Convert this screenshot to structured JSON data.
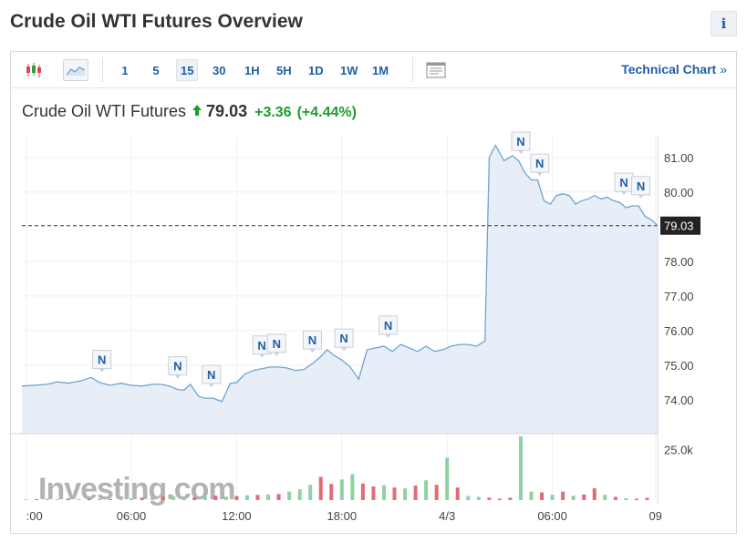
{
  "header": {
    "title": "Crude Oil WTI Futures Overview",
    "info_label": "i"
  },
  "toolbar": {
    "chart_types": [
      "candlestick-icon",
      "area-chart-icon"
    ],
    "intervals": [
      {
        "label": "1",
        "active": false
      },
      {
        "label": "5",
        "active": false
      },
      {
        "label": "15",
        "active": true
      },
      {
        "label": "30",
        "active": false
      },
      {
        "label": "1H",
        "active": false
      },
      {
        "label": "5H",
        "active": false
      },
      {
        "label": "1D",
        "active": false
      },
      {
        "label": "1W",
        "active": false
      },
      {
        "label": "1M",
        "active": false
      }
    ],
    "layout_icon": "chart-layout-icon",
    "technical_chart_label": "Technical Chart",
    "technical_chart_chevron": "»"
  },
  "quote": {
    "name": "Crude Oil WTI Futures",
    "direction": "up",
    "price": "79.03",
    "change": "+3.36",
    "change_pct": "(+4.44%)"
  },
  "colors": {
    "line": "#6fa4d2",
    "area": "#e7eef7",
    "up_volume": "#8fd1a4",
    "down_volume": "#e06c78",
    "positive": "#1e9c2e",
    "link": "#1f5ea8"
  },
  "watermark": "Investing.com",
  "chart_data": {
    "type": "area",
    "current_price_label": "79.03",
    "current_price": 79.03,
    "y_ticks": [
      "81.00",
      "80.00",
      "79.03",
      "78.00",
      "77.00",
      "76.00",
      "75.00",
      "74.00"
    ],
    "y_tick_values": [
      81,
      80,
      78,
      77,
      76,
      75,
      74
    ],
    "ylim": [
      73.5,
      81.6
    ],
    "x_ticks": [
      ":00",
      "06:00",
      "12:00",
      "18:00",
      "4/3",
      "06:00",
      "09"
    ],
    "volume_tick": "25.0k",
    "volume_tick_value": 25000,
    "volume_ylim": [
      0,
      32000
    ],
    "news_marker_label": "N",
    "news_markers": [
      {
        "t": 3.6,
        "label": "N"
      },
      {
        "t": 7.2,
        "label": "N"
      },
      {
        "t": 8.8,
        "label": "N"
      },
      {
        "t": 11.2,
        "label": "N"
      },
      {
        "t": 11.9,
        "label": "N"
      },
      {
        "t": 13.6,
        "label": "N"
      },
      {
        "t": 15.1,
        "label": "N"
      },
      {
        "t": 17.2,
        "label": "N"
      },
      {
        "t": 23.5,
        "label": "N"
      },
      {
        "t": 24.4,
        "label": "N"
      },
      {
        "t": 28.4,
        "label": "N"
      },
      {
        "t": 29.2,
        "label": "N"
      }
    ],
    "t_range": [
      -0.2,
      30.0
    ],
    "series": [
      {
        "t": [
          -0.2,
          0.4,
          1.0,
          1.5,
          2.0,
          2.6,
          3.1,
          3.5,
          4.0,
          4.5,
          5.0,
          5.5,
          6.0,
          6.4,
          6.8,
          7.2,
          7.5,
          7.8,
          8.2,
          8.5,
          8.9,
          9.3,
          9.7,
          10.0,
          10.4,
          10.8,
          11.2,
          11.6,
          12.0,
          12.4,
          12.8,
          13.2,
          13.6,
          14.0,
          14.3,
          14.6,
          15.0,
          15.4,
          15.8,
          16.2,
          16.6,
          17.0,
          17.4,
          17.8,
          18.2,
          18.6,
          19.0,
          19.4,
          19.8,
          20.2,
          20.6,
          21.0,
          21.4,
          21.8,
          22.0,
          22.3,
          22.7,
          23.1,
          23.4,
          23.7,
          24.0,
          24.3,
          24.6,
          24.9,
          25.2,
          25.5,
          25.8,
          26.1,
          26.4,
          26.7,
          27.0,
          27.3,
          27.6,
          27.9,
          28.2,
          28.5,
          28.8,
          29.1,
          29.4,
          29.7,
          30.0
        ],
        "y": [
          74.4,
          74.42,
          74.45,
          74.52,
          74.48,
          74.55,
          74.65,
          74.5,
          74.42,
          74.48,
          74.42,
          74.4,
          74.45,
          74.45,
          74.4,
          74.3,
          74.28,
          74.45,
          74.1,
          74.05,
          74.05,
          73.95,
          74.48,
          74.5,
          74.75,
          74.85,
          74.9,
          74.95,
          74.95,
          74.92,
          74.85,
          74.88,
          75.05,
          75.25,
          75.45,
          75.3,
          75.15,
          74.95,
          74.6,
          75.45,
          75.5,
          75.55,
          75.4,
          75.6,
          75.5,
          75.4,
          75.55,
          75.4,
          75.45,
          75.55,
          75.6,
          75.6,
          75.55,
          75.7,
          81.0,
          81.35,
          80.9,
          81.05,
          80.9,
          80.55,
          80.35,
          80.35,
          79.75,
          79.65,
          79.9,
          79.95,
          79.9,
          79.65,
          79.75,
          79.8,
          79.9,
          79.8,
          79.85,
          79.75,
          79.7,
          79.55,
          79.6,
          79.6,
          79.3,
          79.2,
          79.03
        ]
      }
    ],
    "volume": {
      "t": [
        0,
        0.5,
        1,
        1.5,
        2,
        2.5,
        3,
        3.5,
        4,
        4.5,
        5,
        5.5,
        6,
        6.5,
        7,
        7.5,
        8,
        8.5,
        9,
        9.5,
        10,
        10.5,
        11,
        11.5,
        12,
        12.5,
        13,
        13.5,
        14,
        14.5,
        15,
        15.5,
        16,
        16.5,
        17,
        17.5,
        18,
        18.5,
        19,
        19.5,
        20,
        20.5,
        21,
        21.5,
        22,
        22.5,
        23,
        23.5,
        24,
        24.5,
        25,
        25.5,
        26,
        26.5,
        27,
        27.5,
        28,
        28.5,
        29,
        29.5
      ],
      "v": [
        300,
        500,
        600,
        400,
        700,
        500,
        600,
        800,
        500,
        600,
        900,
        1200,
        1500,
        1800,
        2000,
        1600,
        1400,
        1800,
        2200,
        1700,
        2000,
        2400,
        2600,
        2800,
        3000,
        4200,
        5400,
        7500,
        11500,
        8000,
        10200,
        12800,
        8200,
        6800,
        7400,
        6200,
        5800,
        7200,
        9800,
        7600,
        21000,
        6200,
        2000,
        1600,
        1200,
        700,
        1200,
        31500,
        4200,
        3800,
        2600,
        4200,
        2200,
        2800,
        5800,
        2600,
        1600,
        900,
        700,
        1100
      ],
      "up": [
        true,
        false,
        true,
        true,
        false,
        true,
        false,
        true,
        false,
        true,
        true,
        false,
        true,
        false,
        true,
        true,
        false,
        true,
        false,
        true,
        false,
        true,
        false,
        true,
        false,
        true,
        true,
        true,
        false,
        false,
        true,
        true,
        false,
        false,
        true,
        false,
        true,
        false,
        true,
        false,
        true,
        false,
        true,
        true,
        false,
        false,
        false,
        true,
        true,
        false,
        true,
        false,
        true,
        false,
        false,
        true,
        false,
        true,
        false,
        false
      ]
    }
  }
}
